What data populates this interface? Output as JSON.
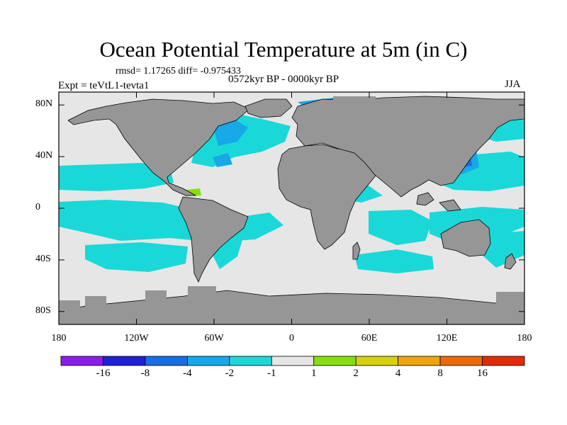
{
  "header": {
    "title": "Ocean Potential Temperature at 5m (in C)",
    "stats": "rmsd= 1.17265 diff= -0.975433",
    "period": "0572kyr BP - 0000kyr BP",
    "experiment": "Expt = teVtL1-tevta1",
    "season": "JJA"
  },
  "axes": {
    "y_ticks": [
      {
        "label": "80N",
        "lat": 80
      },
      {
        "label": "40N",
        "lat": 40
      },
      {
        "label": "0",
        "lat": 0
      },
      {
        "label": "40S",
        "lat": -40
      },
      {
        "label": "80S",
        "lat": -80
      }
    ],
    "x_ticks": [
      {
        "label": "180",
        "lon": -180
      },
      {
        "label": "120W",
        "lon": -120
      },
      {
        "label": "60W",
        "lon": -60
      },
      {
        "label": "0",
        "lon": 0
      },
      {
        "label": "60E",
        "lon": 60
      },
      {
        "label": "120E",
        "lon": 120
      },
      {
        "label": "180",
        "lon": 180
      }
    ],
    "lat_range": [
      -90,
      90
    ],
    "lon_range": [
      -180,
      180
    ]
  },
  "colorbar": {
    "colors": [
      "#8a1ee8",
      "#2020d8",
      "#1a6ee0",
      "#17a8e8",
      "#1ad8d8",
      "#e6e6e6",
      "#88dd11",
      "#d6d20a",
      "#eca60c",
      "#e86a0a",
      "#e22a0a"
    ],
    "labels": [
      "-16",
      "-8",
      "-4",
      "-2",
      "-1",
      "1",
      "2",
      "4",
      "8",
      "16"
    ]
  },
  "colors": {
    "land": "#969696",
    "ocean_neutral": "#e6e6e6",
    "anomaly_-1_to_-2": "#1ad8d8",
    "anomaly_-2_to_-4": "#17a8e8",
    "anomaly_-4_to_-8": "#1a6ee0",
    "anomaly_1_to_2": "#88dd11"
  }
}
